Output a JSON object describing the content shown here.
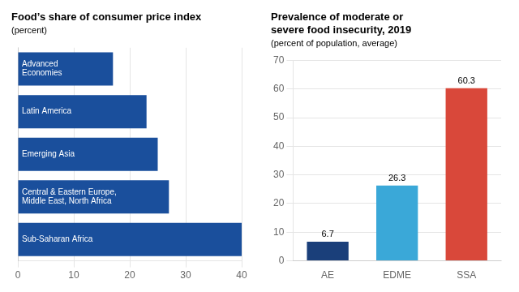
{
  "chart_data": [
    {
      "type": "bar",
      "orientation": "horizontal",
      "title": "Food’s share of consumer price index",
      "subtitle": "(percent)",
      "categories": [
        "Advanced\nEconomies",
        "Latin America",
        "Emerging Asia",
        "Central & Eastern Europe,\nMiddle East, North Africa",
        "Sub-Saharan Africa"
      ],
      "values": [
        17,
        23,
        25,
        27,
        40
      ],
      "color": "#1a4f9c",
      "xlim": [
        0,
        40
      ],
      "xticks": [
        0,
        10,
        20,
        30,
        40
      ],
      "grid": true,
      "tick_labels": "x"
    },
    {
      "type": "bar",
      "title": "Prevalence of moderate or\nsevere food insecurity, 2019",
      "subtitle": "(percent of population, average)",
      "categories": [
        "AE",
        "EDME",
        "SSA"
      ],
      "values": [
        6.7,
        26.3,
        60.3
      ],
      "colors": [
        "#1a3f7a",
        "#3aa8d8",
        "#d9483a"
      ],
      "ylim": [
        0,
        70
      ],
      "yticks": [
        0,
        10,
        20,
        30,
        40,
        50,
        60,
        70
      ],
      "grid": true,
      "data_labels": true
    }
  ]
}
